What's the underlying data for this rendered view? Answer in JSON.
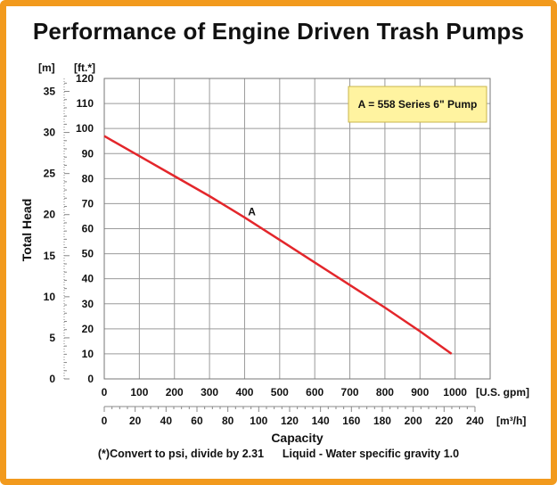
{
  "title": "Performance of Engine Driven Trash Pumps",
  "footnote": "(*)Convert to psi, divide by 2.31      Liquid - Water specific gravity 1.0",
  "colors": {
    "frame": "#f29a1d",
    "curve": "#e3262b",
    "legend_bg": "#fff3a0",
    "legend_border": "#c9b64a",
    "grid": "#9a9a9a"
  },
  "chart_data": {
    "type": "line",
    "title": "Performance of Engine Driven Trash Pumps",
    "xlabel": "Capacity",
    "ylabel": "Total Head",
    "x_unit_top": "[U.S. gpm]",
    "x_unit_bottom": "[m³/h]",
    "y_unit_left": "[m]",
    "y_unit_right": "[ft.*]",
    "xlim": [
      0,
      1100
    ],
    "ylim": [
      0,
      120
    ],
    "grid": true,
    "x_ticks": [
      0,
      100,
      200,
      300,
      400,
      500,
      600,
      700,
      800,
      900,
      1000
    ],
    "x_ticks_m3h": [
      0,
      20,
      40,
      60,
      80,
      100,
      120,
      140,
      160,
      180,
      200,
      220,
      240
    ],
    "y_ticks_ft": [
      0,
      10,
      20,
      30,
      40,
      50,
      60,
      70,
      80,
      90,
      100,
      110,
      120
    ],
    "y_ticks_m": [
      0,
      5,
      10,
      15,
      20,
      25,
      30,
      35
    ],
    "legend": "A = 558 Series 6\" Pump",
    "legend_position": "top-right",
    "series": [
      {
        "name": "A",
        "x": [
          0,
          100,
          200,
          300,
          400,
          500,
          600,
          700,
          800,
          900,
          990
        ],
        "y": [
          97,
          89,
          81,
          73,
          64.5,
          55.5,
          46.5,
          37.5,
          28.5,
          19,
          10
        ]
      }
    ]
  }
}
